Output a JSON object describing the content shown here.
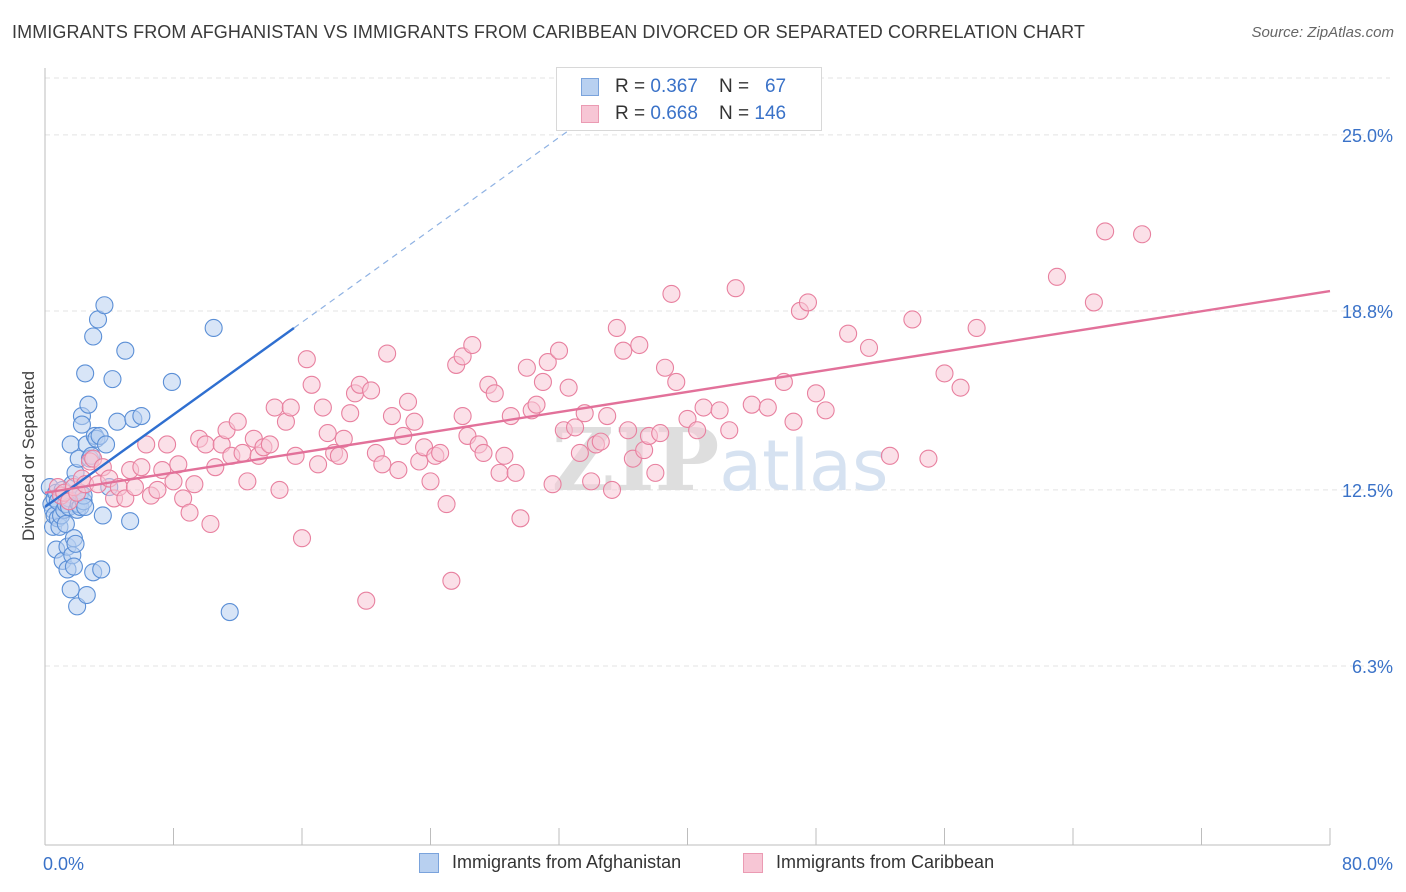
{
  "title": "IMMIGRANTS FROM AFGHANISTAN VS IMMIGRANTS FROM CARIBBEAN DIVORCED OR SEPARATED CORRELATION CHART",
  "source": "Source: ZipAtlas.com",
  "legend_stats": [
    {
      "r_label": "R = ",
      "r_value": "0.367",
      "n_label": "N = ",
      "n_value": "67"
    },
    {
      "r_label": "R = ",
      "r_value": "0.668",
      "n_label": "N = ",
      "n_value": "146"
    }
  ],
  "colors": {
    "afghanistan": "#5b8fd6",
    "afghanistan_fill": "#b8d0f0",
    "caribbean": "#e8809f",
    "caribbean_fill": "#f7c6d5",
    "axis_text": "#3a72c8",
    "grid": "#e3e3e3"
  },
  "chart_data": {
    "type": "scatter",
    "title": "IMMIGRANTS FROM AFGHANISTAN VS IMMIGRANTS FROM CARIBBEAN DIVORCED OR SEPARATED CORRELATION CHART",
    "xlabel": "",
    "ylabel": "Divorced or Separated",
    "xlim": [
      0,
      80
    ],
    "ylim": [
      0,
      27
    ],
    "x_tick_labels": [
      "0.0%",
      "80.0%"
    ],
    "y_ticks": [
      6.3,
      12.5,
      18.8,
      25.0
    ],
    "y_tick_labels": [
      "6.3%",
      "12.5%",
      "18.8%",
      "25.0%"
    ],
    "grid": true,
    "legend_position": "bottom",
    "watermark": "ZIPatlas",
    "series": [
      {
        "name": "Immigrants from Afghanistan",
        "trend": {
          "x0": 0.0,
          "y0": 11.9,
          "x1": 15.5,
          "y1": 18.2,
          "dashed_to_x": 33.0
        },
        "points": [
          [
            0.3,
            12.6
          ],
          [
            0.4,
            12.0
          ],
          [
            0.5,
            11.8
          ],
          [
            0.5,
            11.2
          ],
          [
            0.6,
            12.2
          ],
          [
            0.6,
            11.6
          ],
          [
            0.7,
            10.4
          ],
          [
            0.7,
            12.4
          ],
          [
            0.8,
            11.5
          ],
          [
            0.8,
            12.1
          ],
          [
            0.9,
            11.2
          ],
          [
            1.0,
            12.3
          ],
          [
            1.0,
            11.6
          ],
          [
            1.1,
            10.0
          ],
          [
            1.1,
            12.5
          ],
          [
            1.2,
            11.8
          ],
          [
            1.3,
            12.0
          ],
          [
            1.3,
            11.3
          ],
          [
            1.4,
            9.7
          ],
          [
            1.4,
            10.5
          ],
          [
            1.5,
            12.2
          ],
          [
            1.5,
            11.9
          ],
          [
            1.6,
            14.1
          ],
          [
            1.6,
            9.0
          ],
          [
            1.7,
            10.2
          ],
          [
            1.7,
            12.7
          ],
          [
            1.8,
            10.8
          ],
          [
            1.8,
            9.8
          ],
          [
            1.9,
            10.6
          ],
          [
            1.9,
            13.1
          ],
          [
            2.0,
            8.4
          ],
          [
            2.0,
            11.8
          ],
          [
            2.1,
            12.0
          ],
          [
            2.1,
            13.6
          ],
          [
            2.2,
            11.9
          ],
          [
            2.2,
            12.4
          ],
          [
            2.3,
            15.1
          ],
          [
            2.3,
            14.8
          ],
          [
            2.4,
            12.1
          ],
          [
            2.4,
            12.3
          ],
          [
            2.5,
            16.6
          ],
          [
            2.5,
            11.9
          ],
          [
            2.6,
            8.8
          ],
          [
            2.6,
            14.1
          ],
          [
            2.7,
            15.5
          ],
          [
            2.8,
            13.6
          ],
          [
            2.9,
            13.7
          ],
          [
            3.0,
            9.6
          ],
          [
            3.0,
            17.9
          ],
          [
            3.1,
            14.4
          ],
          [
            3.2,
            14.3
          ],
          [
            3.3,
            18.5
          ],
          [
            3.4,
            14.4
          ],
          [
            3.5,
            9.7
          ],
          [
            3.6,
            11.6
          ],
          [
            3.7,
            19.0
          ],
          [
            3.8,
            14.1
          ],
          [
            4.0,
            12.6
          ],
          [
            4.2,
            16.4
          ],
          [
            4.5,
            14.9
          ],
          [
            5.0,
            17.4
          ],
          [
            5.3,
            11.4
          ],
          [
            5.5,
            15.0
          ],
          [
            6.0,
            15.1
          ],
          [
            7.9,
            16.3
          ],
          [
            10.5,
            18.2
          ],
          [
            11.5,
            8.2
          ]
        ]
      },
      {
        "name": "Immigrants from Caribbean",
        "trend": {
          "x0": 0.0,
          "y0": 12.4,
          "x1": 80.0,
          "y1": 19.5
        },
        "points": [
          [
            0.8,
            12.6
          ],
          [
            1.0,
            12.3
          ],
          [
            1.2,
            12.4
          ],
          [
            1.5,
            12.1
          ],
          [
            1.8,
            12.6
          ],
          [
            2.0,
            12.4
          ],
          [
            2.3,
            12.9
          ],
          [
            2.5,
            12.7
          ],
          [
            2.8,
            13.5
          ],
          [
            3.0,
            13.6
          ],
          [
            3.3,
            12.7
          ],
          [
            3.6,
            13.3
          ],
          [
            4.0,
            12.9
          ],
          [
            4.3,
            12.2
          ],
          [
            4.6,
            12.6
          ],
          [
            5.0,
            12.2
          ],
          [
            5.3,
            13.2
          ],
          [
            5.6,
            12.6
          ],
          [
            6.0,
            13.3
          ],
          [
            6.3,
            14.1
          ],
          [
            6.6,
            12.3
          ],
          [
            7.0,
            12.5
          ],
          [
            7.3,
            13.2
          ],
          [
            7.6,
            14.1
          ],
          [
            8.0,
            12.8
          ],
          [
            8.3,
            13.4
          ],
          [
            8.6,
            12.2
          ],
          [
            9.0,
            11.7
          ],
          [
            9.3,
            12.7
          ],
          [
            9.6,
            14.3
          ],
          [
            10.0,
            14.1
          ],
          [
            10.3,
            11.3
          ],
          [
            10.6,
            13.3
          ],
          [
            11.0,
            14.1
          ],
          [
            11.3,
            14.6
          ],
          [
            11.6,
            13.7
          ],
          [
            12.0,
            14.9
          ],
          [
            12.3,
            13.8
          ],
          [
            12.6,
            12.8
          ],
          [
            13.0,
            14.3
          ],
          [
            13.3,
            13.7
          ],
          [
            13.6,
            14.0
          ],
          [
            14.0,
            14.1
          ],
          [
            14.3,
            15.4
          ],
          [
            14.6,
            12.5
          ],
          [
            15.0,
            14.9
          ],
          [
            15.3,
            15.4
          ],
          [
            15.6,
            13.7
          ],
          [
            16.0,
            10.8
          ],
          [
            16.3,
            17.1
          ],
          [
            16.6,
            16.2
          ],
          [
            17.0,
            13.4
          ],
          [
            17.3,
            15.4
          ],
          [
            17.6,
            14.5
          ],
          [
            18.0,
            13.8
          ],
          [
            18.3,
            13.7
          ],
          [
            18.6,
            14.3
          ],
          [
            19.0,
            15.2
          ],
          [
            19.3,
            15.9
          ],
          [
            19.6,
            16.2
          ],
          [
            20.0,
            8.6
          ],
          [
            20.3,
            16.0
          ],
          [
            20.6,
            13.8
          ],
          [
            21.0,
            13.4
          ],
          [
            21.3,
            17.3
          ],
          [
            21.6,
            15.1
          ],
          [
            22.0,
            13.2
          ],
          [
            22.3,
            14.4
          ],
          [
            22.6,
            15.6
          ],
          [
            23.0,
            14.9
          ],
          [
            23.3,
            13.5
          ],
          [
            23.6,
            14.0
          ],
          [
            24.0,
            12.8
          ],
          [
            24.3,
            13.7
          ],
          [
            24.6,
            13.8
          ],
          [
            25.0,
            12.0
          ],
          [
            25.3,
            9.3
          ],
          [
            25.6,
            16.9
          ],
          [
            26.0,
            17.2
          ],
          [
            26.3,
            14.4
          ],
          [
            26.6,
            17.6
          ],
          [
            27.0,
            14.1
          ],
          [
            27.3,
            13.8
          ],
          [
            27.6,
            16.2
          ],
          [
            28.0,
            15.9
          ],
          [
            28.3,
            13.1
          ],
          [
            28.6,
            13.7
          ],
          [
            29.0,
            15.1
          ],
          [
            29.3,
            13.1
          ],
          [
            29.6,
            11.5
          ],
          [
            30.0,
            16.8
          ],
          [
            30.3,
            15.3
          ],
          [
            30.6,
            15.5
          ],
          [
            31.0,
            16.3
          ],
          [
            31.3,
            17.0
          ],
          [
            31.6,
            12.7
          ],
          [
            32.0,
            17.4
          ],
          [
            32.3,
            14.6
          ],
          [
            32.6,
            16.1
          ],
          [
            33.0,
            14.7
          ],
          [
            33.3,
            13.8
          ],
          [
            33.6,
            15.2
          ],
          [
            34.0,
            12.8
          ],
          [
            34.3,
            14.1
          ],
          [
            34.6,
            14.2
          ],
          [
            35.0,
            15.1
          ],
          [
            35.3,
            12.5
          ],
          [
            35.6,
            18.2
          ],
          [
            36.0,
            17.4
          ],
          [
            36.3,
            14.6
          ],
          [
            36.6,
            13.6
          ],
          [
            37.0,
            17.6
          ],
          [
            37.3,
            13.9
          ],
          [
            37.6,
            14.4
          ],
          [
            38.0,
            13.1
          ],
          [
            38.3,
            14.5
          ],
          [
            38.6,
            16.8
          ],
          [
            39.0,
            19.4
          ],
          [
            39.3,
            16.3
          ],
          [
            40.0,
            15.0
          ],
          [
            40.6,
            14.6
          ],
          [
            41.0,
            15.4
          ],
          [
            42.0,
            15.3
          ],
          [
            42.6,
            14.6
          ],
          [
            43.0,
            19.6
          ],
          [
            44.0,
            15.5
          ],
          [
            45.0,
            15.4
          ],
          [
            46.0,
            16.3
          ],
          [
            46.6,
            14.9
          ],
          [
            47.0,
            18.8
          ],
          [
            48.0,
            15.9
          ],
          [
            48.6,
            15.3
          ],
          [
            50.0,
            18.0
          ],
          [
            51.3,
            17.5
          ],
          [
            52.6,
            13.7
          ],
          [
            54.0,
            18.5
          ],
          [
            56.0,
            16.6
          ],
          [
            57.0,
            16.1
          ],
          [
            58.0,
            18.2
          ],
          [
            63.0,
            20.0
          ],
          [
            65.3,
            19.1
          ],
          [
            66.0,
            21.6
          ],
          [
            68.3,
            21.5
          ],
          [
            55.0,
            13.6
          ],
          [
            47.5,
            19.1
          ],
          [
            26.0,
            15.1
          ]
        ]
      }
    ]
  },
  "bottom_legend": [
    {
      "label": "Immigrants from Afghanistan"
    },
    {
      "label": "Immigrants from Caribbean"
    }
  ]
}
